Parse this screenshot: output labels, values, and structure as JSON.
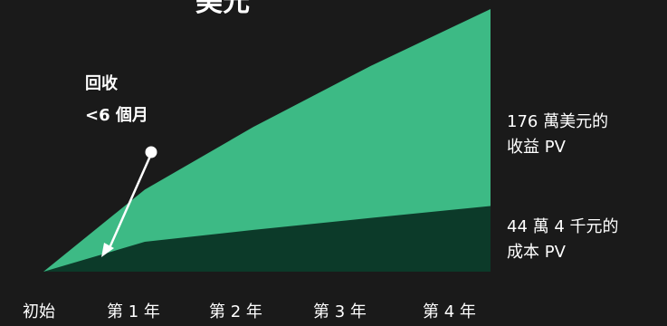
{
  "chart_data": {
    "type": "area",
    "title": "美元",
    "categories": [
      "初始",
      "第 1 年",
      "第 2 年",
      "第 3 年",
      "第 4 年"
    ],
    "series": [
      {
        "name": "收益 PV",
        "values": [
          0,
          55,
          97,
          138,
          176
        ],
        "color": "#3dba85"
      },
      {
        "name": "成本 PV",
        "values": [
          0,
          20,
          28,
          36,
          44
        ],
        "color": "#0c3a29"
      }
    ],
    "ylim": [
      0,
      176
    ],
    "grid": false,
    "legend": "right",
    "benefit_label": [
      "176 萬美元的",
      "收益 PV"
    ],
    "cost_label": [
      "44 萬 4 千元的",
      "成本 PV"
    ],
    "annotation": [
      "回收",
      "<6 個月"
    ]
  }
}
